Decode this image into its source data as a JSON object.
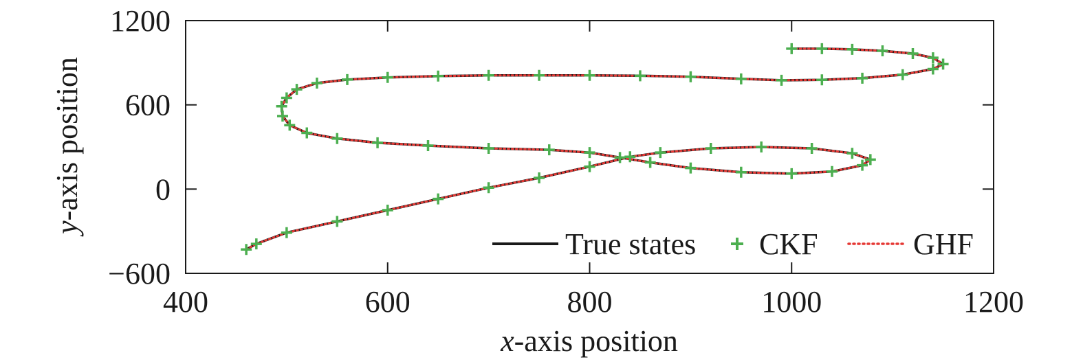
{
  "chart_data": {
    "type": "line",
    "xlabel_italic": "x",
    "xlabel_rest": "-axis position",
    "ylabel_italic": "y",
    "ylabel_rest": "-axis position",
    "xlim": [
      400,
      1200
    ],
    "ylim": [
      -600,
      1200
    ],
    "x_ticks": [
      400,
      600,
      800,
      1000,
      1200
    ],
    "y_ticks": [
      -600,
      0,
      600,
      1200
    ],
    "x_tick_labels": [
      "400",
      "600",
      "800",
      "1000",
      "1200"
    ],
    "y_tick_labels": [
      "−600",
      "0",
      "600",
      "1200"
    ],
    "grid": false,
    "legend_position": "bottom-right",
    "colors": {
      "true": "#1a1a1a",
      "ckf": "#4caf50",
      "ghf": "#e53935"
    },
    "series": [
      {
        "name": "True states",
        "style": "solid",
        "x": [
          1000,
          1030,
          1060,
          1090,
          1120,
          1140,
          1150,
          1140,
          1110,
          1070,
          1030,
          990,
          950,
          900,
          850,
          800,
          750,
          700,
          650,
          600,
          560,
          530,
          510,
          500,
          495,
          496,
          503,
          520,
          550,
          590,
          640,
          700,
          760,
          800,
          830,
          860,
          900,
          950,
          1000,
          1040,
          1070,
          1078,
          1060,
          1020,
          970,
          920,
          870,
          840,
          800,
          750,
          700,
          650,
          600,
          550,
          500,
          470,
          460
        ],
        "y": [
          1000,
          1000,
          995,
          985,
          965,
          935,
          890,
          855,
          815,
          790,
          778,
          775,
          785,
          800,
          807,
          810,
          810,
          810,
          805,
          795,
          780,
          755,
          710,
          650,
          590,
          520,
          455,
          400,
          360,
          330,
          310,
          290,
          280,
          260,
          225,
          190,
          150,
          120,
          110,
          125,
          170,
          210,
          255,
          290,
          300,
          290,
          260,
          230,
          160,
          80,
          10,
          -70,
          -150,
          -230,
          -310,
          -390,
          -430
        ]
      },
      {
        "name": "CKF",
        "style": "marker-plus",
        "x": [
          1000,
          1030,
          1060,
          1090,
          1120,
          1140,
          1150,
          1140,
          1110,
          1070,
          1030,
          990,
          950,
          900,
          850,
          800,
          750,
          700,
          650,
          600,
          560,
          530,
          510,
          500,
          495,
          496,
          503,
          520,
          550,
          590,
          640,
          700,
          760,
          800,
          830,
          860,
          900,
          950,
          1000,
          1040,
          1070,
          1078,
          1060,
          1020,
          970,
          920,
          870,
          840,
          800,
          750,
          700,
          650,
          600,
          550,
          500,
          470,
          460
        ],
        "y": [
          1000,
          1000,
          995,
          985,
          965,
          935,
          890,
          855,
          815,
          790,
          778,
          775,
          785,
          800,
          807,
          810,
          810,
          810,
          805,
          795,
          780,
          755,
          710,
          650,
          590,
          520,
          455,
          400,
          360,
          330,
          310,
          290,
          280,
          260,
          225,
          190,
          150,
          120,
          110,
          125,
          170,
          210,
          255,
          290,
          300,
          290,
          260,
          230,
          160,
          80,
          10,
          -70,
          -150,
          -230,
          -310,
          -390,
          -430
        ]
      },
      {
        "name": "GHF",
        "style": "dotted",
        "x": [
          1000,
          1030,
          1060,
          1090,
          1120,
          1140,
          1150,
          1140,
          1110,
          1070,
          1030,
          990,
          950,
          900,
          850,
          800,
          750,
          700,
          650,
          600,
          560,
          530,
          510,
          500,
          495,
          496,
          503,
          520,
          550,
          590,
          640,
          700,
          760,
          800,
          830,
          860,
          900,
          950,
          1000,
          1040,
          1070,
          1078,
          1060,
          1020,
          970,
          920,
          870,
          840,
          800,
          750,
          700,
          650,
          600,
          550,
          500,
          470,
          460
        ],
        "y": [
          1000,
          1000,
          995,
          985,
          965,
          935,
          890,
          855,
          815,
          790,
          778,
          775,
          785,
          800,
          807,
          810,
          810,
          810,
          805,
          795,
          780,
          755,
          710,
          650,
          590,
          520,
          455,
          400,
          360,
          330,
          310,
          290,
          280,
          260,
          225,
          190,
          150,
          120,
          110,
          125,
          170,
          210,
          255,
          290,
          300,
          290,
          260,
          230,
          160,
          80,
          10,
          -70,
          -150,
          -230,
          -310,
          -390,
          -430
        ]
      }
    ]
  }
}
